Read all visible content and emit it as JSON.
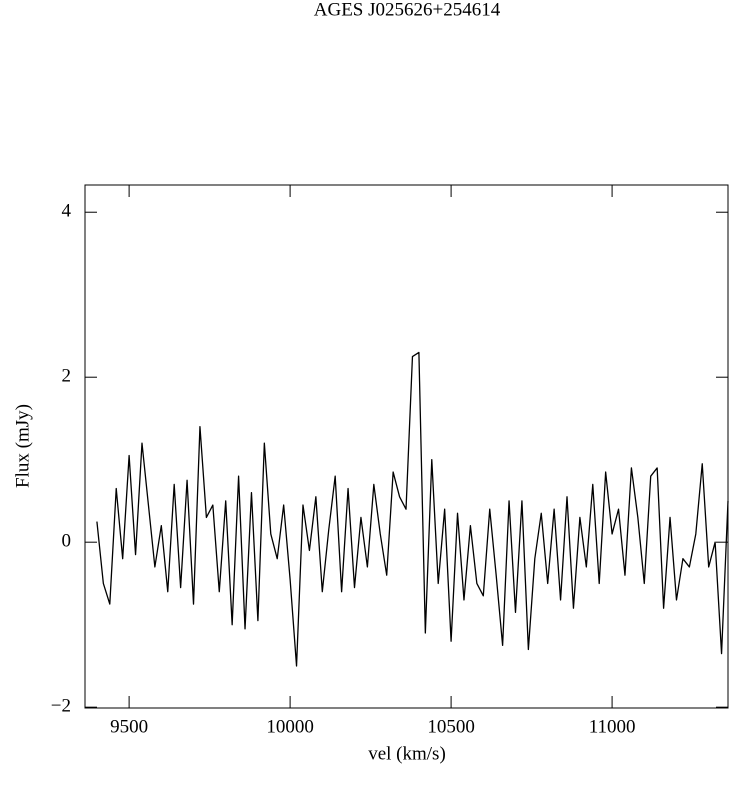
{
  "chart_data": {
    "type": "line",
    "title": "AGES J025626+254614",
    "x_label": "vel (km/s)",
    "y_label": "Flux (mJy)",
    "xlim": [
      9363,
      11360
    ],
    "ylim": [
      -2.01,
      4.33
    ],
    "xticks": [
      9500,
      10000,
      10500,
      11000
    ],
    "yticks": [
      {
        "value": -2,
        "label": "−2"
      },
      0,
      2,
      4
    ],
    "color": "#000000",
    "x": [
      9400,
      9420,
      9440,
      9460,
      9480,
      9500,
      9520,
      9540,
      9560,
      9580,
      9600,
      9620,
      9640,
      9660,
      9680,
      9700,
      9720,
      9740,
      9760,
      9780,
      9800,
      9820,
      9840,
      9860,
      9880,
      9900,
      9920,
      9940,
      9960,
      9980,
      10000,
      10020,
      10040,
      10060,
      10080,
      10100,
      10120,
      10140,
      10160,
      10180,
      10200,
      10220,
      10240,
      10260,
      10280,
      10300,
      10320,
      10340,
      10360,
      10380,
      10400,
      10420,
      10440,
      10460,
      10480,
      10500,
      10520,
      10540,
      10560,
      10580,
      10600,
      10620,
      10640,
      10660,
      10680,
      10700,
      10720,
      10740,
      10760,
      10780,
      10800,
      10820,
      10840,
      10860,
      10880,
      10900,
      10920,
      10940,
      10960,
      10980,
      11000,
      11020,
      11040,
      11060,
      11080,
      11100,
      11120,
      11140,
      11160,
      11180,
      11200,
      11220,
      11240,
      11260,
      11280,
      11300,
      11320,
      11340,
      11360
    ],
    "values": [
      0.25,
      -0.5,
      -0.75,
      0.65,
      -0.2,
      1.05,
      -0.15,
      1.2,
      0.45,
      -0.3,
      0.2,
      -0.6,
      0.7,
      -0.55,
      0.75,
      -0.75,
      1.4,
      0.3,
      0.45,
      -0.6,
      0.5,
      -1.0,
      0.8,
      -1.05,
      0.6,
      -0.95,
      1.2,
      0.1,
      -0.2,
      0.45,
      -0.45,
      -1.5,
      0.45,
      -0.1,
      0.55,
      -0.6,
      0.15,
      0.8,
      -0.6,
      0.65,
      -0.55,
      0.3,
      -0.3,
      0.7,
      0.1,
      -0.4,
      0.85,
      0.55,
      0.4,
      2.25,
      2.3,
      -1.1,
      1.0,
      -0.5,
      0.4,
      -1.2,
      0.35,
      -0.7,
      0.2,
      -0.5,
      -0.65,
      0.4,
      -0.4,
      -1.25,
      0.5,
      -0.85,
      0.5,
      -1.3,
      -0.2,
      0.35,
      -0.5,
      0.4,
      -0.7,
      0.55,
      -0.8,
      0.3,
      -0.3,
      0.7,
      -0.5,
      0.85,
      0.1,
      0.4,
      -0.4,
      0.9,
      0.3,
      -0.5,
      0.8,
      0.9,
      -0.8,
      0.3,
      -0.7,
      -0.2,
      -0.3,
      0.1,
      0.95,
      -0.3,
      0.0,
      -1.35,
      0.5
    ]
  }
}
